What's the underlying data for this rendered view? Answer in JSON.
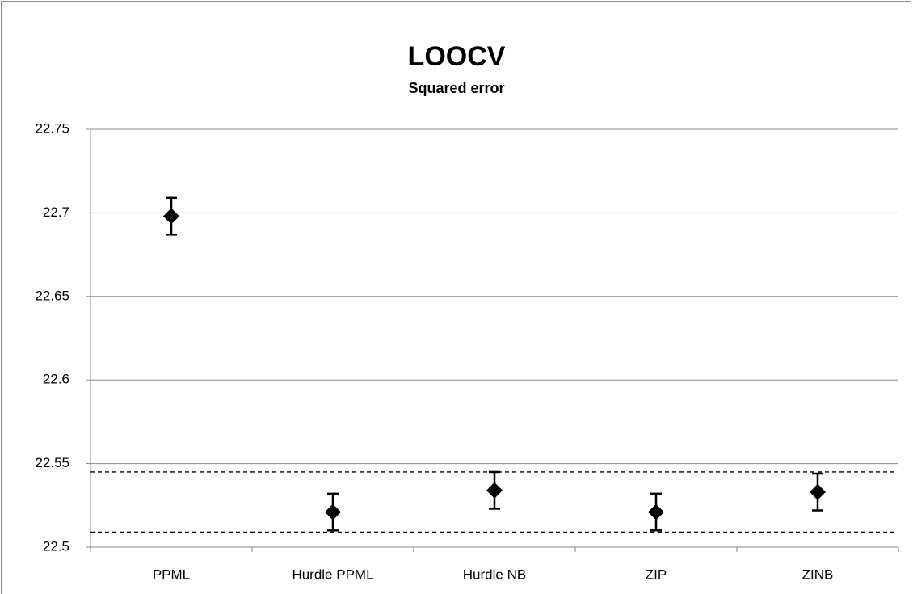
{
  "chart_data": {
    "type": "errorbar",
    "title": "LOOCV",
    "subtitle": "Squared error",
    "categories": [
      "PPML",
      "Hurdle PPML",
      "Hurdle NB",
      "ZIP",
      "ZINB"
    ],
    "values": [
      22.698,
      22.521,
      22.534,
      22.521,
      22.533
    ],
    "errors": [
      0.011,
      0.011,
      0.011,
      0.011,
      0.011
    ],
    "color": "#000000",
    "reference_lines": [
      22.545,
      22.509
    ],
    "ylim": [
      22.5,
      22.75
    ],
    "yticks": [
      22.5,
      22.55,
      22.6,
      22.65,
      22.7,
      22.75
    ],
    "grid": true
  }
}
